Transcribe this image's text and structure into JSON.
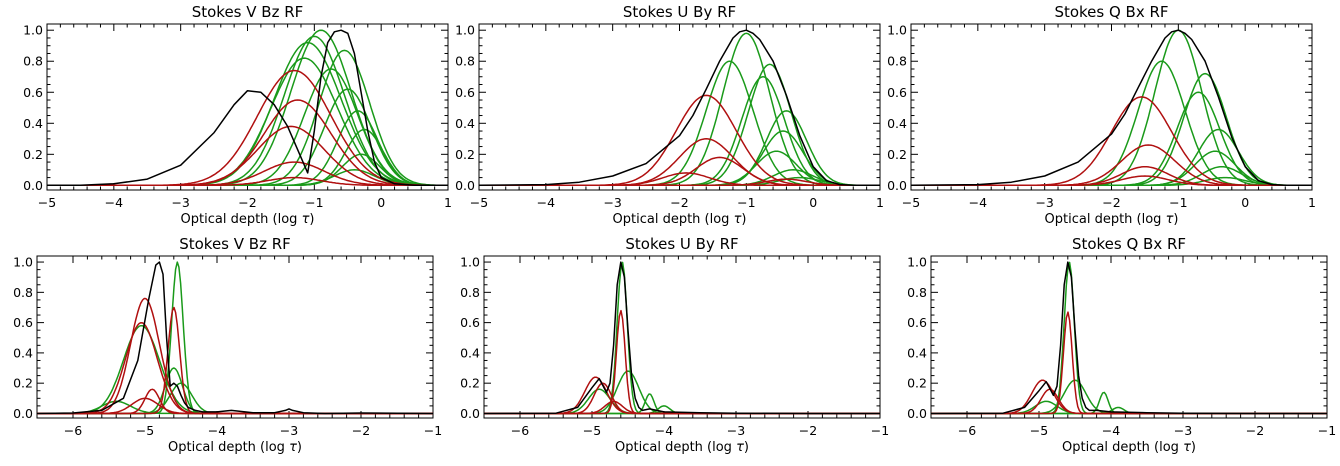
{
  "colors": {
    "black": "#000000",
    "red": "#b01010",
    "green": "#1a9a1a"
  },
  "chart_data": [
    {
      "type": "line",
      "title": "Stokes V Bz RF",
      "xlabel": "Optical depth (log",
      "xlabel_symbol": "τ",
      "xlim": [
        -5,
        1
      ],
      "ylim": [
        -0.03,
        1.04
      ],
      "xticks": [
        -5,
        -4,
        -3,
        -2,
        -1,
        0,
        1
      ],
      "yticks": [
        0.0,
        0.2,
        0.4,
        0.6,
        0.8,
        1.0
      ],
      "xtick_labels": [
        "−5",
        "−4",
        "−3",
        "−2",
        "−1",
        "0",
        "1"
      ],
      "ytick_labels": [
        "0.0",
        "0.2",
        "0.4",
        "0.6",
        "0.8",
        "1.0"
      ],
      "series": [
        {
          "color": "black",
          "x": [
            -5,
            -4.5,
            -4,
            -3.5,
            -3,
            -2.5,
            -2.2,
            -2,
            -1.8,
            -1.6,
            -1.4,
            -1.2,
            -1.1,
            -1,
            -0.9,
            -0.8,
            -0.7,
            -0.6,
            -0.5,
            -0.4,
            -0.3,
            -0.2,
            -0.1,
            0,
            0.2,
            0.5,
            1
          ],
          "y": [
            0,
            0,
            0.01,
            0.04,
            0.13,
            0.34,
            0.52,
            0.61,
            0.6,
            0.52,
            0.38,
            0.18,
            0.08,
            0.35,
            0.7,
            0.92,
            0.99,
            1.0,
            0.98,
            0.85,
            0.6,
            0.35,
            0.15,
            0.05,
            0.01,
            0,
            0
          ]
        },
        {
          "color": "red",
          "peak": 0.74,
          "center": -1.3,
          "sigma": 0.55
        },
        {
          "color": "red",
          "peak": 0.55,
          "center": -1.25,
          "sigma": 0.5
        },
        {
          "color": "red",
          "peak": 0.38,
          "center": -1.35,
          "sigma": 0.5
        },
        {
          "color": "red",
          "peak": 0.15,
          "center": -1.3,
          "sigma": 0.45
        },
        {
          "color": "red",
          "peak": 0.05,
          "center": -1.3,
          "sigma": 0.4
        },
        {
          "color": "green",
          "peak": 1.0,
          "center": -0.9,
          "sigma": 0.45
        },
        {
          "color": "green",
          "peak": 0.96,
          "center": -1.0,
          "sigma": 0.45
        },
        {
          "color": "green",
          "peak": 0.92,
          "center": -1.1,
          "sigma": 0.5
        },
        {
          "color": "green",
          "peak": 0.87,
          "center": -0.55,
          "sigma": 0.38
        },
        {
          "color": "green",
          "peak": 0.82,
          "center": -1.15,
          "sigma": 0.5
        },
        {
          "color": "green",
          "peak": 0.75,
          "center": -0.75,
          "sigma": 0.4
        },
        {
          "color": "green",
          "peak": 0.62,
          "center": -0.5,
          "sigma": 0.35
        },
        {
          "color": "green",
          "peak": 0.48,
          "center": -0.35,
          "sigma": 0.3
        },
        {
          "color": "green",
          "peak": 0.36,
          "center": -0.25,
          "sigma": 0.28
        },
        {
          "color": "green",
          "peak": 0.2,
          "center": -0.3,
          "sigma": 0.28
        },
        {
          "color": "green",
          "peak": 0.1,
          "center": -0.4,
          "sigma": 0.3
        }
      ]
    },
    {
      "type": "line",
      "title": "Stokes U By RF",
      "xlabel": "Optical depth (log",
      "xlabel_symbol": "τ",
      "xlim": [
        -5,
        1
      ],
      "ylim": [
        -0.03,
        1.04
      ],
      "xticks": [
        -5,
        -4,
        -3,
        -2,
        -1,
        0,
        1
      ],
      "yticks": [
        0.0,
        0.2,
        0.4,
        0.6,
        0.8,
        1.0
      ],
      "xtick_labels": [
        "−5",
        "−4",
        "−3",
        "−2",
        "−1",
        "0",
        "1"
      ],
      "ytick_labels": [
        "0.0",
        "0.2",
        "0.4",
        "0.6",
        "0.8",
        "1.0"
      ],
      "series": [
        {
          "color": "black",
          "x": [
            -5,
            -4,
            -3.5,
            -3,
            -2.5,
            -2,
            -1.8,
            -1.6,
            -1.4,
            -1.2,
            -1.1,
            -1,
            -0.9,
            -0.8,
            -0.6,
            -0.4,
            -0.2,
            0,
            0.2,
            0.4,
            0.6,
            1
          ],
          "y": [
            0,
            0.005,
            0.02,
            0.06,
            0.14,
            0.32,
            0.45,
            0.62,
            0.8,
            0.95,
            0.99,
            1.0,
            0.98,
            0.94,
            0.8,
            0.58,
            0.32,
            0.12,
            0.03,
            0.005,
            0,
            0
          ]
        },
        {
          "color": "red",
          "peak": 0.58,
          "center": -1.6,
          "sigma": 0.45
        },
        {
          "color": "red",
          "peak": 0.3,
          "center": -1.6,
          "sigma": 0.4
        },
        {
          "color": "red",
          "peak": 0.18,
          "center": -1.4,
          "sigma": 0.35
        },
        {
          "color": "red",
          "peak": 0.08,
          "center": -1.9,
          "sigma": 0.35
        },
        {
          "color": "red",
          "peak": 0.04,
          "center": -0.4,
          "sigma": 0.3
        },
        {
          "color": "green",
          "peak": 0.98,
          "center": -1.0,
          "sigma": 0.35
        },
        {
          "color": "green",
          "peak": 0.8,
          "center": -1.25,
          "sigma": 0.35
        },
        {
          "color": "green",
          "peak": 0.78,
          "center": -0.65,
          "sigma": 0.32
        },
        {
          "color": "green",
          "peak": 0.7,
          "center": -0.75,
          "sigma": 0.32
        },
        {
          "color": "green",
          "peak": 0.48,
          "center": -0.4,
          "sigma": 0.3
        },
        {
          "color": "green",
          "peak": 0.35,
          "center": -0.45,
          "sigma": 0.3
        },
        {
          "color": "green",
          "peak": 0.22,
          "center": -0.55,
          "sigma": 0.3
        },
        {
          "color": "green",
          "peak": 0.1,
          "center": -0.3,
          "sigma": 0.3
        },
        {
          "color": "green",
          "peak": 0.05,
          "center": -0.2,
          "sigma": 0.3
        }
      ]
    },
    {
      "type": "line",
      "title": "Stokes Q Bx RF",
      "xlabel": "Optical depth (log",
      "xlabel_symbol": "τ",
      "xlim": [
        -5,
        1
      ],
      "ylim": [
        -0.03,
        1.04
      ],
      "xticks": [
        -5,
        -4,
        -3,
        -2,
        -1,
        0,
        1
      ],
      "yticks": [
        0.0,
        0.2,
        0.4,
        0.6,
        0.8,
        1.0
      ],
      "xtick_labels": [
        "−5",
        "−4",
        "−3",
        "−2",
        "−1",
        "0",
        "1"
      ],
      "ytick_labels": [
        "0.0",
        "0.2",
        "0.4",
        "0.6",
        "0.8",
        "1.0"
      ],
      "series": [
        {
          "color": "black",
          "x": [
            -5,
            -4,
            -3.5,
            -3,
            -2.5,
            -2,
            -1.8,
            -1.6,
            -1.4,
            -1.2,
            -1.1,
            -1,
            -0.9,
            -0.8,
            -0.6,
            -0.4,
            -0.2,
            0,
            0.2,
            0.4,
            0.6,
            1
          ],
          "y": [
            0,
            0.005,
            0.02,
            0.06,
            0.15,
            0.33,
            0.46,
            0.63,
            0.8,
            0.95,
            0.99,
            1.0,
            0.98,
            0.94,
            0.8,
            0.57,
            0.31,
            0.12,
            0.03,
            0.005,
            0,
            0
          ]
        },
        {
          "color": "red",
          "peak": 0.57,
          "center": -1.55,
          "sigma": 0.45
        },
        {
          "color": "red",
          "peak": 0.26,
          "center": -1.45,
          "sigma": 0.4
        },
        {
          "color": "red",
          "peak": 0.12,
          "center": -1.5,
          "sigma": 0.35
        },
        {
          "color": "red",
          "peak": 0.06,
          "center": -1.5,
          "sigma": 0.35
        },
        {
          "color": "green",
          "peak": 1.0,
          "center": -1.0,
          "sigma": 0.35
        },
        {
          "color": "green",
          "peak": 0.8,
          "center": -1.25,
          "sigma": 0.35
        },
        {
          "color": "green",
          "peak": 0.72,
          "center": -0.6,
          "sigma": 0.32
        },
        {
          "color": "green",
          "peak": 0.6,
          "center": -0.7,
          "sigma": 0.32
        },
        {
          "color": "green",
          "peak": 0.36,
          "center": -0.4,
          "sigma": 0.3
        },
        {
          "color": "green",
          "peak": 0.22,
          "center": -0.45,
          "sigma": 0.3
        },
        {
          "color": "green",
          "peak": 0.12,
          "center": -0.35,
          "sigma": 0.3
        },
        {
          "color": "green",
          "peak": 0.05,
          "center": -0.3,
          "sigma": 0.3
        }
      ]
    },
    {
      "type": "line",
      "title": "Stokes V Bz RF",
      "xlabel": "Optical depth (log",
      "xlabel_symbol": "τ",
      "xlim": [
        -6.5,
        -1
      ],
      "ylim": [
        -0.03,
        1.04
      ],
      "xticks": [
        -6,
        -5,
        -4,
        -3,
        -2,
        -1
      ],
      "yticks": [
        0.0,
        0.2,
        0.4,
        0.6,
        0.8,
        1.0
      ],
      "xtick_labels": [
        "−6",
        "−5",
        "−4",
        "−3",
        "−2",
        "−1"
      ],
      "ytick_labels": [
        "0.0",
        "0.2",
        "0.4",
        "0.6",
        "0.8",
        "1.0"
      ],
      "series": [
        {
          "color": "black",
          "x": [
            -6.5,
            -6,
            -5.6,
            -5.3,
            -5.1,
            -4.95,
            -4.85,
            -4.8,
            -4.75,
            -4.7,
            -4.65,
            -4.6,
            -4.55,
            -4.5,
            -4.45,
            -4.4,
            -4.3,
            -4.2,
            -4.0,
            -3.8,
            -3.5,
            -3.2,
            -3.05,
            -3.0,
            -2.95,
            -2.8,
            -2.5,
            -2,
            -1
          ],
          "y": [
            0,
            0.003,
            0.02,
            0.1,
            0.35,
            0.75,
            0.98,
            1.0,
            0.92,
            0.5,
            0.18,
            0.2,
            0.18,
            0.12,
            0.07,
            0.04,
            0.02,
            0.01,
            0.01,
            0.02,
            0.005,
            0.005,
            0.02,
            0.03,
            0.02,
            0.005,
            0,
            0.003,
            0
          ]
        },
        {
          "color": "red",
          "peak": 0.76,
          "center": -5.0,
          "sigma": 0.2
        },
        {
          "color": "red",
          "peak": 0.7,
          "center": -4.6,
          "sigma": 0.08
        },
        {
          "color": "red",
          "peak": 0.6,
          "center": -5.05,
          "sigma": 0.22
        },
        {
          "color": "red",
          "peak": 0.16,
          "center": -4.9,
          "sigma": 0.1
        },
        {
          "color": "red",
          "peak": 0.1,
          "center": -5.0,
          "sigma": 0.18
        },
        {
          "color": "green",
          "peak": 1.0,
          "center": -4.55,
          "sigma": 0.08
        },
        {
          "color": "green",
          "peak": 0.58,
          "center": -5.05,
          "sigma": 0.25
        },
        {
          "color": "green",
          "peak": 0.3,
          "center": -4.6,
          "sigma": 0.12
        },
        {
          "color": "green",
          "peak": 0.2,
          "center": -4.5,
          "sigma": 0.15
        },
        {
          "color": "green",
          "peak": 0.08,
          "center": -5.4,
          "sigma": 0.2
        }
      ]
    },
    {
      "type": "line",
      "title": "Stokes U By RF",
      "xlabel": "Optical depth (log",
      "xlabel_symbol": "τ",
      "xlim": [
        -6.5,
        -1
      ],
      "ylim": [
        -0.03,
        1.04
      ],
      "xticks": [
        -6,
        -5,
        -4,
        -3,
        -2,
        -1
      ],
      "yticks": [
        0.0,
        0.2,
        0.4,
        0.6,
        0.8,
        1.0
      ],
      "xtick_labels": [
        "−6",
        "−5",
        "−4",
        "−3",
        "−2",
        "−1"
      ],
      "ytick_labels": [
        "0.0",
        "0.2",
        "0.4",
        "0.6",
        "0.8",
        "1.0"
      ],
      "series": [
        {
          "color": "black",
          "x": [
            -6.5,
            -5.5,
            -5.2,
            -5.0,
            -4.9,
            -4.8,
            -4.75,
            -4.7,
            -4.65,
            -4.6,
            -4.55,
            -4.5,
            -4.45,
            -4.4,
            -4.35,
            -4.3,
            -4.2,
            -4.0,
            -3.5,
            -3,
            -2,
            -1
          ],
          "y": [
            0,
            0.002,
            0.04,
            0.17,
            0.23,
            0.14,
            0.2,
            0.45,
            0.85,
            1.0,
            0.9,
            0.55,
            0.25,
            0.1,
            0.04,
            0.02,
            0.03,
            0.01,
            0.005,
            0.002,
            0,
            0
          ]
        },
        {
          "color": "red",
          "peak": 0.24,
          "center": -4.95,
          "sigma": 0.15
        },
        {
          "color": "red",
          "peak": 0.68,
          "center": -4.6,
          "sigma": 0.06
        },
        {
          "color": "red",
          "peak": 0.2,
          "center": -4.85,
          "sigma": 0.12
        },
        {
          "color": "red",
          "peak": 0.08,
          "center": -4.7,
          "sigma": 0.12
        },
        {
          "color": "green",
          "peak": 1.0,
          "center": -4.58,
          "sigma": 0.07
        },
        {
          "color": "green",
          "peak": 0.28,
          "center": -4.5,
          "sigma": 0.15
        },
        {
          "color": "green",
          "peak": 0.16,
          "center": -4.9,
          "sigma": 0.15
        },
        {
          "color": "green",
          "peak": 0.13,
          "center": -4.2,
          "sigma": 0.06
        },
        {
          "color": "green",
          "peak": 0.05,
          "center": -4.0,
          "sigma": 0.08
        }
      ]
    },
    {
      "type": "line",
      "title": "Stokes Q Bx RF",
      "xlabel": "Optical depth (log",
      "xlabel_symbol": "τ",
      "xlim": [
        -6.5,
        -1
      ],
      "ylim": [
        -0.03,
        1.04
      ],
      "xticks": [
        -6,
        -5,
        -4,
        -3,
        -2,
        -1
      ],
      "yticks": [
        0.0,
        0.2,
        0.4,
        0.6,
        0.8,
        1.0
      ],
      "xtick_labels": [
        "−6",
        "−5",
        "−4",
        "−3",
        "−2",
        "−1"
      ],
      "ytick_labels": [
        "0.0",
        "0.2",
        "0.4",
        "0.6",
        "0.8",
        "1.0"
      ],
      "series": [
        {
          "color": "black",
          "x": [
            -6.5,
            -5.5,
            -5.2,
            -5.0,
            -4.9,
            -4.8,
            -4.75,
            -4.7,
            -4.65,
            -4.6,
            -4.55,
            -4.5,
            -4.45,
            -4.4,
            -4.35,
            -4.3,
            -4.2,
            -4.0,
            -3.5,
            -3,
            -2,
            -1
          ],
          "y": [
            0,
            0.002,
            0.04,
            0.15,
            0.21,
            0.12,
            0.18,
            0.45,
            0.85,
            1.0,
            0.9,
            0.55,
            0.25,
            0.1,
            0.04,
            0.02,
            0.02,
            0.01,
            0.005,
            0.002,
            0,
            0
          ]
        },
        {
          "color": "red",
          "peak": 0.22,
          "center": -4.95,
          "sigma": 0.15
        },
        {
          "color": "red",
          "peak": 0.67,
          "center": -4.6,
          "sigma": 0.06
        },
        {
          "color": "red",
          "peak": 0.16,
          "center": -4.85,
          "sigma": 0.12
        },
        {
          "color": "green",
          "peak": 1.0,
          "center": -4.58,
          "sigma": 0.07
        },
        {
          "color": "green",
          "peak": 0.22,
          "center": -4.5,
          "sigma": 0.15
        },
        {
          "color": "green",
          "peak": 0.14,
          "center": -4.1,
          "sigma": 0.06
        },
        {
          "color": "green",
          "peak": 0.08,
          "center": -4.9,
          "sigma": 0.15
        },
        {
          "color": "green",
          "peak": 0.04,
          "center": -3.9,
          "sigma": 0.08
        }
      ]
    }
  ]
}
